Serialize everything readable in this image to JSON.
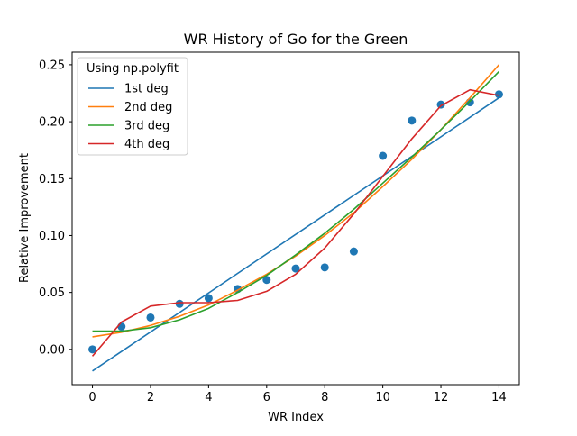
{
  "chart_data": {
    "type": "scatter",
    "title": "WR History of Go for the Green",
    "xlabel": "WR Index",
    "ylabel": "Relative Improvement",
    "xlim": [
      -0.7,
      14.7
    ],
    "ylim": [
      -0.031,
      0.261
    ],
    "x_ticks": [
      0,
      2,
      4,
      6,
      8,
      10,
      12,
      14
    ],
    "x_tick_labels": [
      "0",
      "2",
      "4",
      "6",
      "8",
      "10",
      "12",
      "14"
    ],
    "y_ticks": [
      0.0,
      0.05,
      0.1,
      0.15,
      0.2,
      0.25
    ],
    "y_tick_labels": [
      "0.00",
      "0.05",
      "0.10",
      "0.15",
      "0.20",
      "0.25"
    ],
    "grid": false,
    "points": {
      "x": [
        0,
        1,
        2,
        3,
        4,
        5,
        6,
        7,
        8,
        9,
        10,
        11,
        12,
        13,
        14
      ],
      "y": [
        0.0,
        0.02,
        0.028,
        0.04,
        0.045,
        0.053,
        0.061,
        0.071,
        0.072,
        0.086,
        0.17,
        0.201,
        0.215,
        0.217,
        0.224
      ],
      "color": "#1f77b4"
    },
    "legend": {
      "title": "Using np.polyfit",
      "placement": "top-left"
    },
    "series": [
      {
        "name": "1st deg",
        "color": "#1f77b4",
        "x": [
          0,
          14
        ],
        "y": [
          -0.019,
          0.221
        ]
      },
      {
        "name": "2nd deg",
        "color": "#ff7f0e",
        "x": [
          0,
          1,
          2,
          3,
          4,
          5,
          6,
          7,
          8,
          9,
          10,
          11,
          12,
          13,
          14
        ],
        "y": [
          0.011,
          0.015,
          0.021,
          0.029,
          0.039,
          0.052,
          0.066,
          0.082,
          0.1,
          0.12,
          0.143,
          0.167,
          0.193,
          0.221,
          0.25
        ]
      },
      {
        "name": "3rd deg",
        "color": "#2ca02c",
        "x": [
          0,
          1,
          2,
          3,
          4,
          5,
          6,
          7,
          8,
          9,
          10,
          11,
          12,
          13,
          14
        ],
        "y": [
          0.016,
          0.016,
          0.019,
          0.026,
          0.036,
          0.05,
          0.065,
          0.083,
          0.102,
          0.123,
          0.146,
          0.169,
          0.193,
          0.218,
          0.244
        ]
      },
      {
        "name": "4th deg",
        "color": "#d62728",
        "x": [
          0,
          1,
          2,
          3,
          4,
          5,
          6,
          7,
          8,
          9,
          10,
          11,
          12,
          13,
          14
        ],
        "y": [
          -0.006,
          0.024,
          0.038,
          0.041,
          0.041,
          0.043,
          0.051,
          0.066,
          0.089,
          0.119,
          0.152,
          0.185,
          0.214,
          0.228,
          0.223
        ]
      }
    ]
  }
}
